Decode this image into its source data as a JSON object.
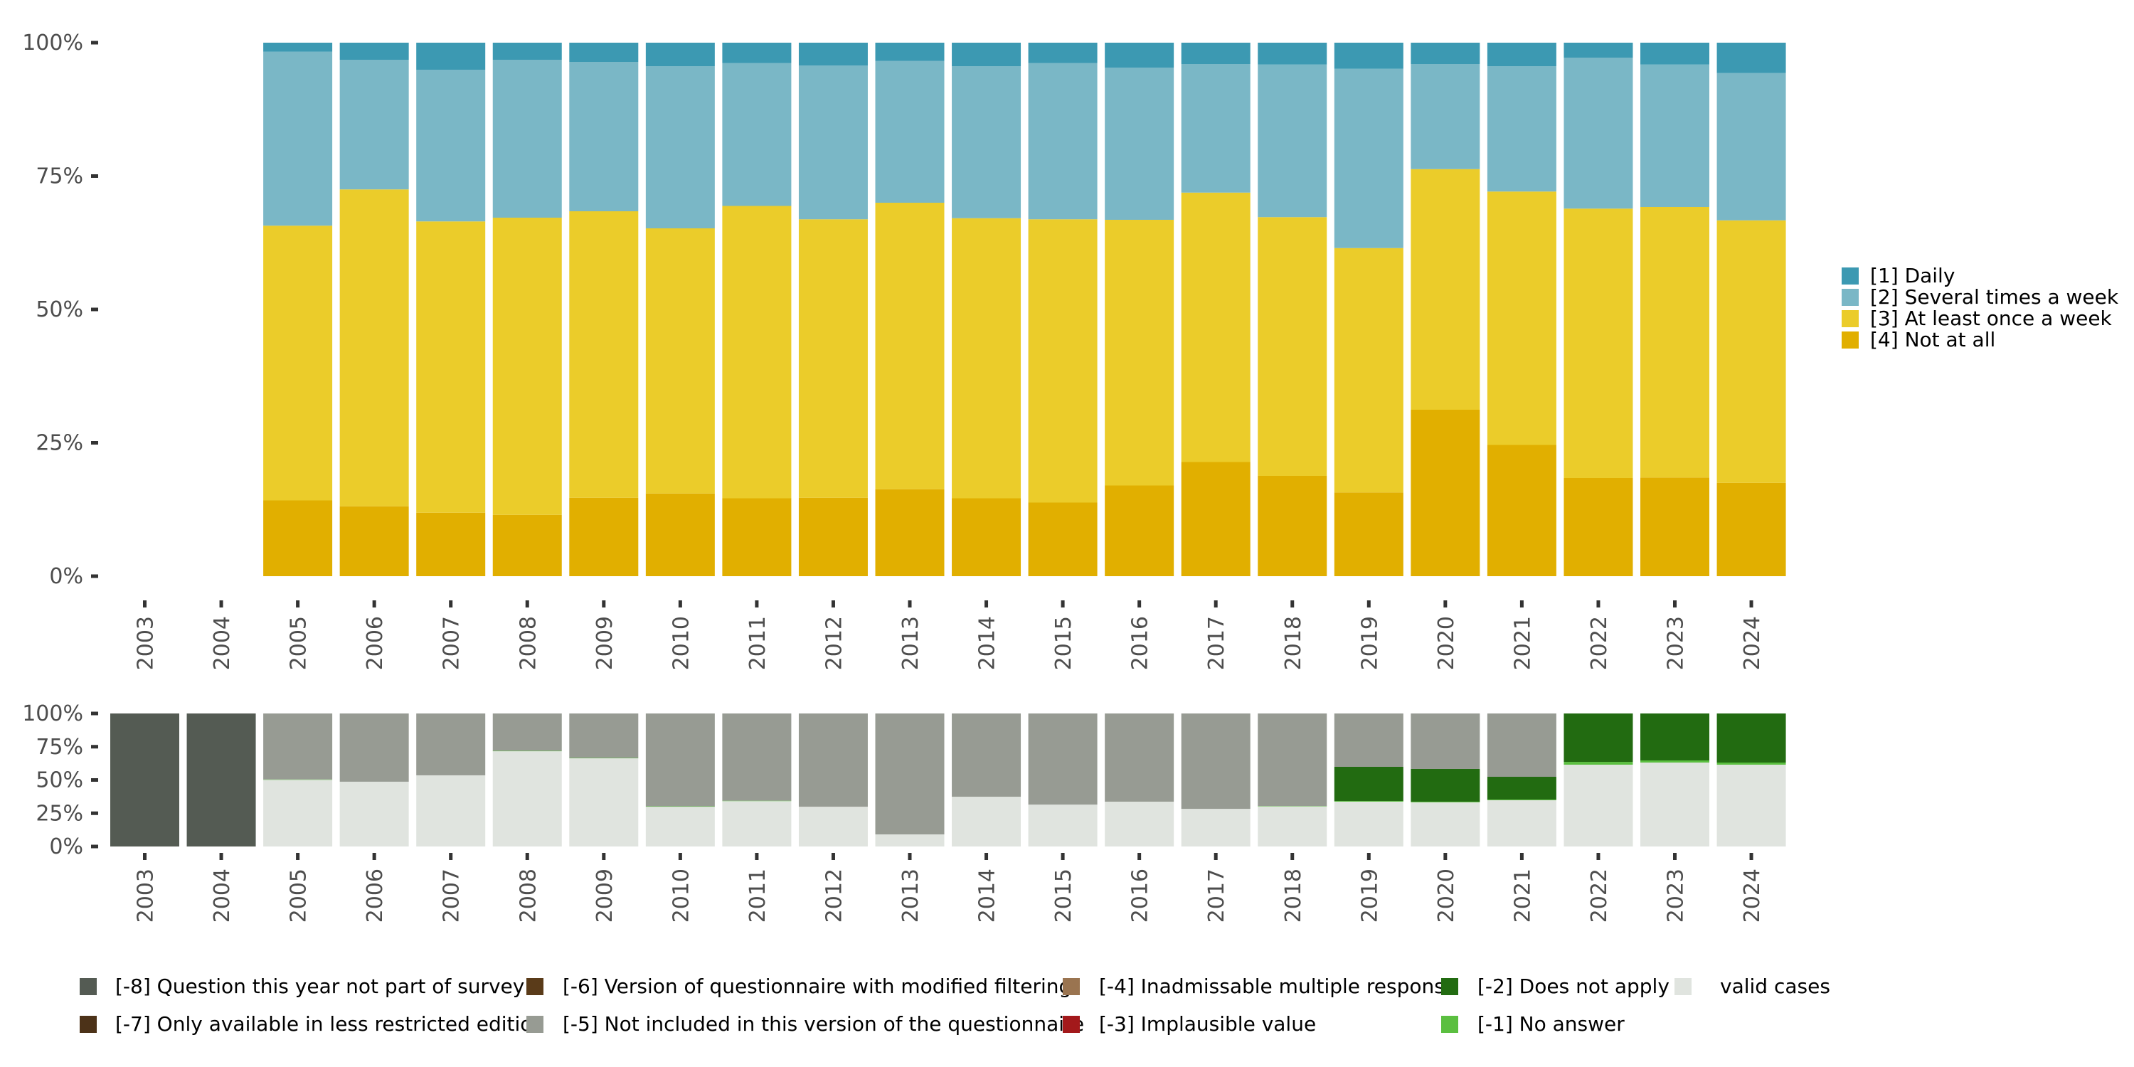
{
  "chart_data": [
    {
      "type": "bar",
      "stacked": true,
      "name": "response-distribution",
      "categories": [
        "2003",
        "2004",
        "2005",
        "2006",
        "2007",
        "2008",
        "2009",
        "2010",
        "2011",
        "2012",
        "2013",
        "2014",
        "2015",
        "2016",
        "2017",
        "2018",
        "2019",
        "2020",
        "2021",
        "2022",
        "2023",
        "2024"
      ],
      "ylim": [
        0,
        100
      ],
      "yticks": [
        "0%",
        "25%",
        "50%",
        "75%",
        "100%"
      ],
      "ytick_values": [
        0,
        25,
        50,
        75,
        100
      ],
      "xlabel": "",
      "ylabel": "",
      "legend_position": "right",
      "series": [
        {
          "name": "[4] Not at all",
          "color": "#e1af00",
          "values": [
            null,
            null,
            14.2,
            13.1,
            11.9,
            11.5,
            14.7,
            15.5,
            14.6,
            14.7,
            16.3,
            14.6,
            13.8,
            17.0,
            21.4,
            18.8,
            15.7,
            31.2,
            24.6,
            18.4,
            18.5,
            17.5
          ]
        },
        {
          "name": "[3] At least once a week",
          "color": "#ebcc2a",
          "values": [
            null,
            null,
            51.5,
            59.4,
            54.6,
            55.7,
            53.7,
            49.7,
            54.8,
            52.2,
            53.7,
            52.5,
            53.1,
            49.8,
            50.5,
            48.5,
            45.8,
            45.1,
            47.5,
            50.5,
            50.7,
            49.2
          ]
        },
        {
          "name": "[2] Several times a week",
          "color": "#7ab7c6",
          "values": [
            null,
            null,
            32.6,
            24.3,
            28.4,
            29.6,
            28.0,
            30.4,
            26.8,
            28.8,
            26.6,
            28.5,
            29.3,
            28.5,
            24.1,
            28.6,
            33.6,
            19.7,
            23.5,
            28.3,
            26.7,
            27.6
          ]
        },
        {
          "name": "[1] Daily",
          "color": "#3c99b2",
          "values": [
            null,
            null,
            1.7,
            3.2,
            5.1,
            3.2,
            3.6,
            4.4,
            3.8,
            4.3,
            3.4,
            4.4,
            3.8,
            4.7,
            4.0,
            4.1,
            4.9,
            4.0,
            4.4,
            2.8,
            4.1,
            5.7
          ]
        }
      ],
      "legend": [
        {
          "label": "[1] Daily",
          "color": "#3c99b2"
        },
        {
          "label": "[2] Several times a week",
          "color": "#7ab7c6"
        },
        {
          "label": "[3] At least once a week",
          "color": "#ebcc2a"
        },
        {
          "label": "[4] Not at all",
          "color": "#e1af00"
        }
      ]
    },
    {
      "type": "bar",
      "stacked": true,
      "name": "missing-values-distribution",
      "categories": [
        "2003",
        "2004",
        "2005",
        "2006",
        "2007",
        "2008",
        "2009",
        "2010",
        "2011",
        "2012",
        "2013",
        "2014",
        "2015",
        "2016",
        "2017",
        "2018",
        "2019",
        "2020",
        "2021",
        "2022",
        "2023",
        "2024"
      ],
      "ylim": [
        0,
        100
      ],
      "yticks": [
        "0%",
        "25%",
        "50%",
        "75%",
        "100%"
      ],
      "ytick_values": [
        0,
        25,
        50,
        75,
        100
      ],
      "legend_position": "bottom",
      "series": [
        {
          "name": "valid cases",
          "color": "#e0e4df",
          "values": [
            0,
            0,
            50.1,
            48.7,
            53.5,
            71.6,
            66.3,
            29.9,
            34.1,
            29.9,
            9.1,
            37.4,
            31.5,
            33.7,
            28.3,
            30.1,
            33.7,
            33.2,
            34.8,
            61.5,
            63.1,
            61.5
          ]
        },
        {
          "name": "[-1] No answer",
          "color": "#5bbf40",
          "values": [
            0,
            0,
            0.3,
            0,
            0,
            0.3,
            0.3,
            0.3,
            0.3,
            0,
            0,
            0,
            0,
            0,
            0,
            0.3,
            0.5,
            0.5,
            0.5,
            2.1,
            1.6,
            1.6
          ]
        },
        {
          "name": "[-2] Does not apply",
          "color": "#226b11",
          "values": [
            0,
            0,
            0,
            0,
            0,
            0,
            0,
            0,
            0,
            0,
            0,
            0,
            0,
            0,
            0,
            0,
            25.7,
            24.6,
            17.1,
            36.4,
            35.3,
            36.9
          ]
        },
        {
          "name": "[-3] Implausible value",
          "color": "#a3191b",
          "values": [
            0,
            0,
            0,
            0,
            0,
            0,
            0,
            0,
            0,
            0,
            0,
            0,
            0,
            0,
            0,
            0,
            0,
            0,
            0,
            0,
            0,
            0
          ]
        },
        {
          "name": "[-4] Inadmissable multiple response",
          "color": "#9a7450",
          "values": [
            0,
            0,
            0,
            0,
            0,
            0,
            0,
            0,
            0,
            0,
            0,
            0,
            0,
            0,
            0,
            0,
            0,
            0,
            0,
            0,
            0,
            0
          ]
        },
        {
          "name": "[-5] Not included in this version of the questionnaire",
          "color": "#979b93",
          "values": [
            0,
            0,
            49.6,
            51.3,
            46.5,
            28.1,
            33.4,
            69.8,
            65.6,
            70.1,
            90.9,
            62.6,
            68.5,
            66.3,
            71.7,
            69.6,
            40.1,
            41.7,
            47.6,
            0,
            0,
            0
          ]
        },
        {
          "name": "[-6] Version of questionnaire with modified filtering",
          "color": "#5a3b19",
          "values": [
            0,
            0,
            0,
            0,
            0,
            0,
            0,
            0,
            0,
            0,
            0,
            0,
            0,
            0,
            0,
            0,
            0,
            0,
            0,
            0,
            0,
            0
          ]
        },
        {
          "name": "[-7] Only available in less restricted edition",
          "color": "#4c3218",
          "values": [
            0,
            0,
            0,
            0,
            0,
            0,
            0,
            0,
            0,
            0,
            0,
            0,
            0,
            0,
            0,
            0,
            0,
            0,
            0,
            0,
            0,
            0
          ]
        },
        {
          "name": "[-8] Question this year not part of survey",
          "color": "#545b53",
          "values": [
            100,
            100,
            0,
            0,
            0,
            0,
            0,
            0,
            0,
            0,
            0,
            0,
            0,
            0,
            0,
            0,
            0,
            0,
            0,
            0,
            0,
            0
          ]
        }
      ],
      "legend": [
        {
          "label": "[-8] Question this year not part of survey",
          "color": "#545b53"
        },
        {
          "label": "[-7] Only available in less restricted edition",
          "color": "#4c3218"
        },
        {
          "label": "[-6] Version of questionnaire with modified filtering",
          "color": "#5a3b19"
        },
        {
          "label": "[-5] Not included in this version of the questionnaire",
          "color": "#979b93"
        },
        {
          "label": "[-4] Inadmissable multiple response",
          "color": "#9a7450"
        },
        {
          "label": "[-3] Implausible value",
          "color": "#a3191b"
        },
        {
          "label": "[-2] Does not apply",
          "color": "#226b11"
        },
        {
          "label": "[-1] No answer",
          "color": "#5bbf40"
        },
        {
          "label": "valid cases",
          "color": "#e0e4df"
        }
      ]
    }
  ]
}
